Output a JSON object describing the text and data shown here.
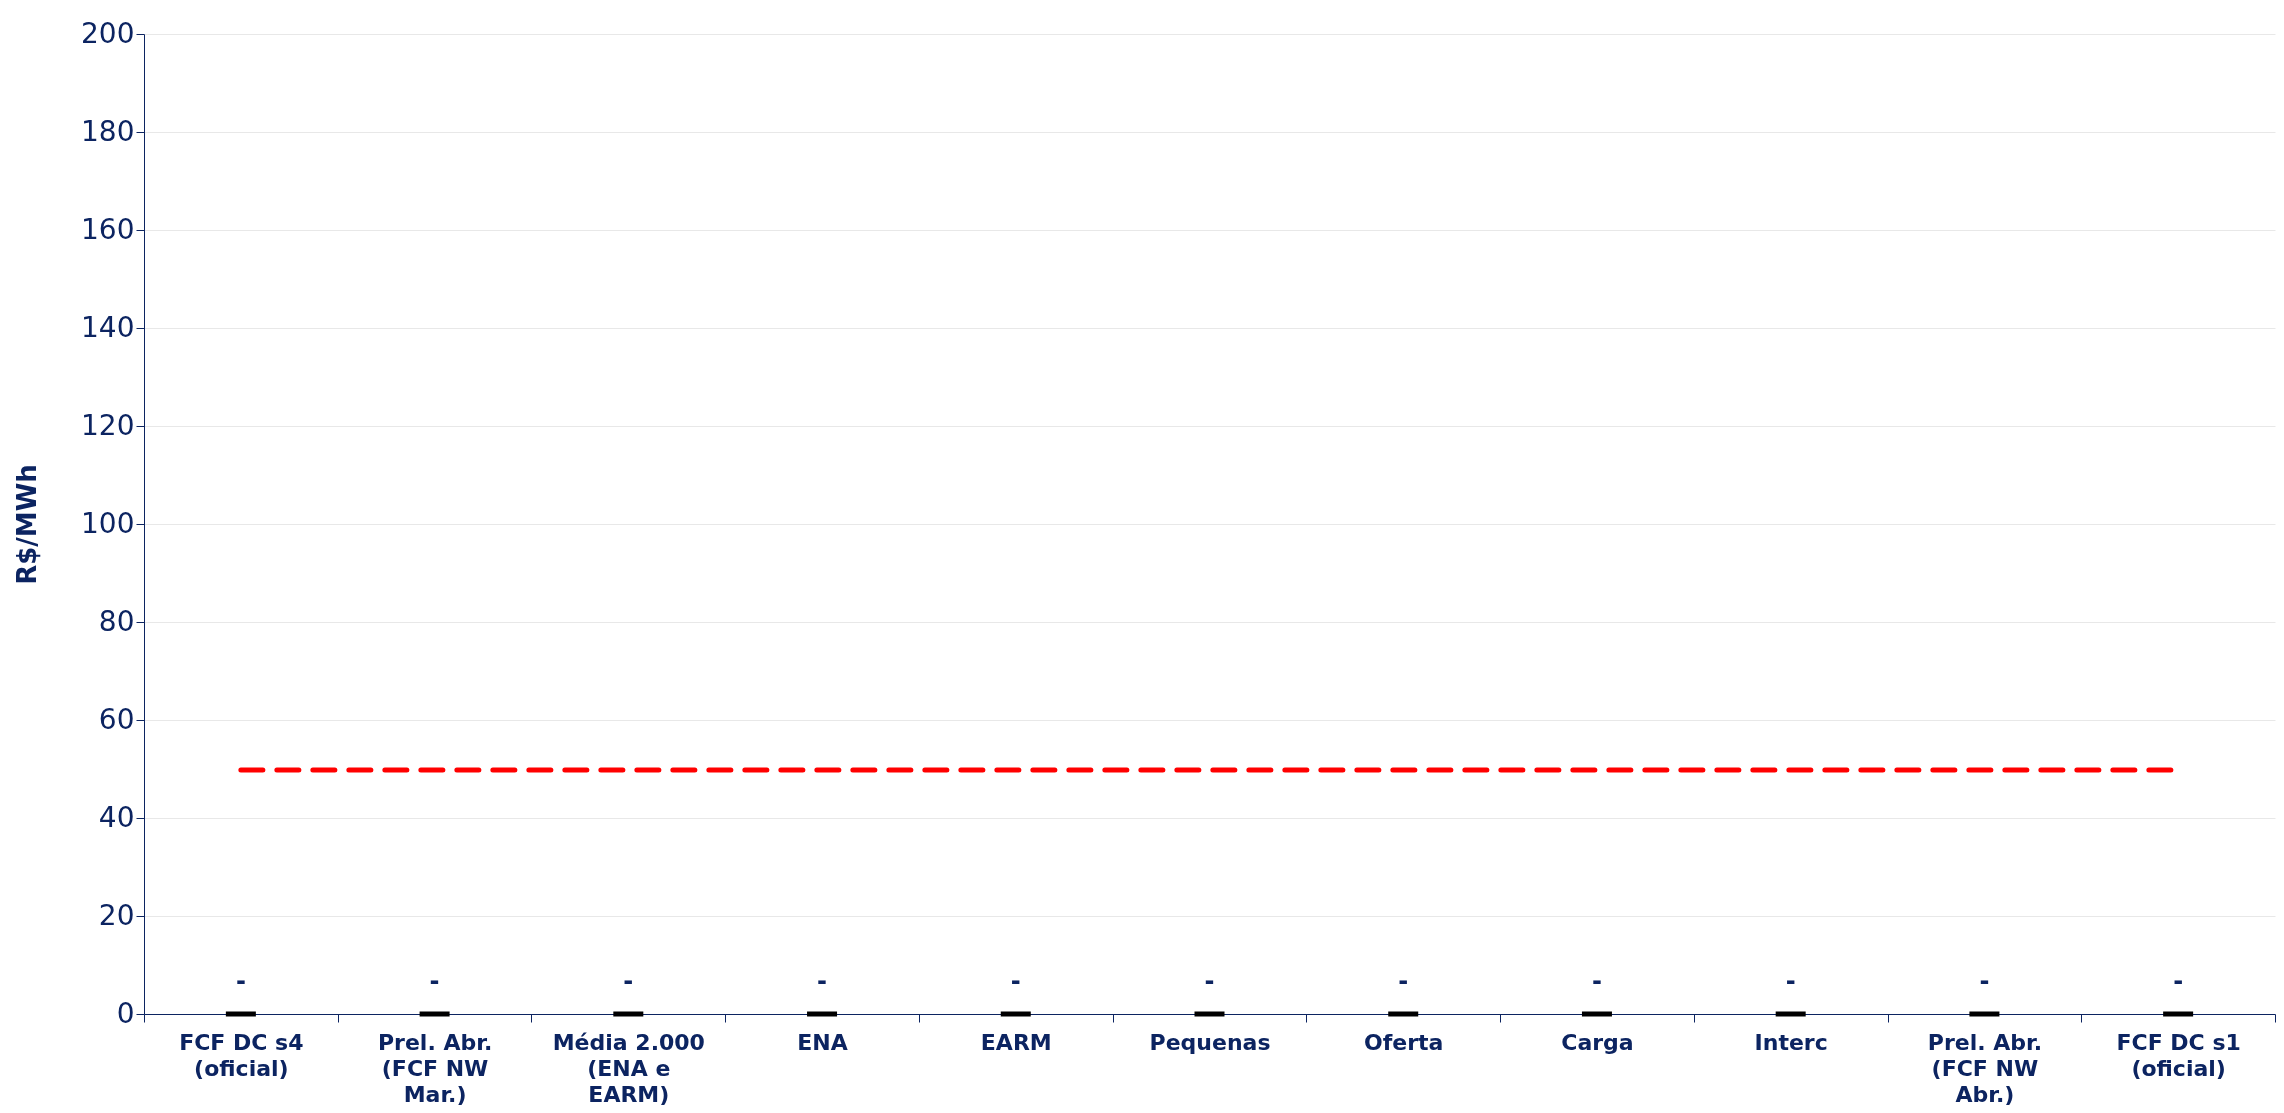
{
  "chart_data": {
    "type": "bar",
    "ylabel": "R$/MWh",
    "categories": [
      "FCF DC s4 (oficial)",
      "Prel. Abr. (FCF NW Mar.)",
      "Média 2.000 (ENA e EARM)",
      "ENA",
      "EARM",
      "Pequenas",
      "Oferta",
      "Carga",
      "Interc",
      "Prel. Abr. (FCF NW Abr.)",
      "FCF DC s1 (oficial)"
    ],
    "series": [
      {
        "color": "#000000",
        "values": [
          0,
          0,
          0,
          0,
          0,
          0,
          0,
          0,
          0,
          0,
          0
        ],
        "value_labels": [
          "-",
          "-",
          "-",
          "-",
          "-",
          "-",
          "-",
          "-",
          "-",
          "-",
          "-"
        ]
      },
      {
        "type": "line",
        "color": "#ff0000",
        "line_style": "dashed",
        "values": [
          49.8,
          49.8,
          49.8,
          49.8,
          49.8,
          49.8,
          49.8,
          49.8,
          49.8,
          49.8,
          49.8
        ]
      }
    ],
    "ylim": [
      0,
      200
    ],
    "yticks": [
      0,
      20,
      40,
      60,
      80,
      100,
      120,
      140,
      160,
      180,
      200
    ],
    "grid": "y"
  }
}
